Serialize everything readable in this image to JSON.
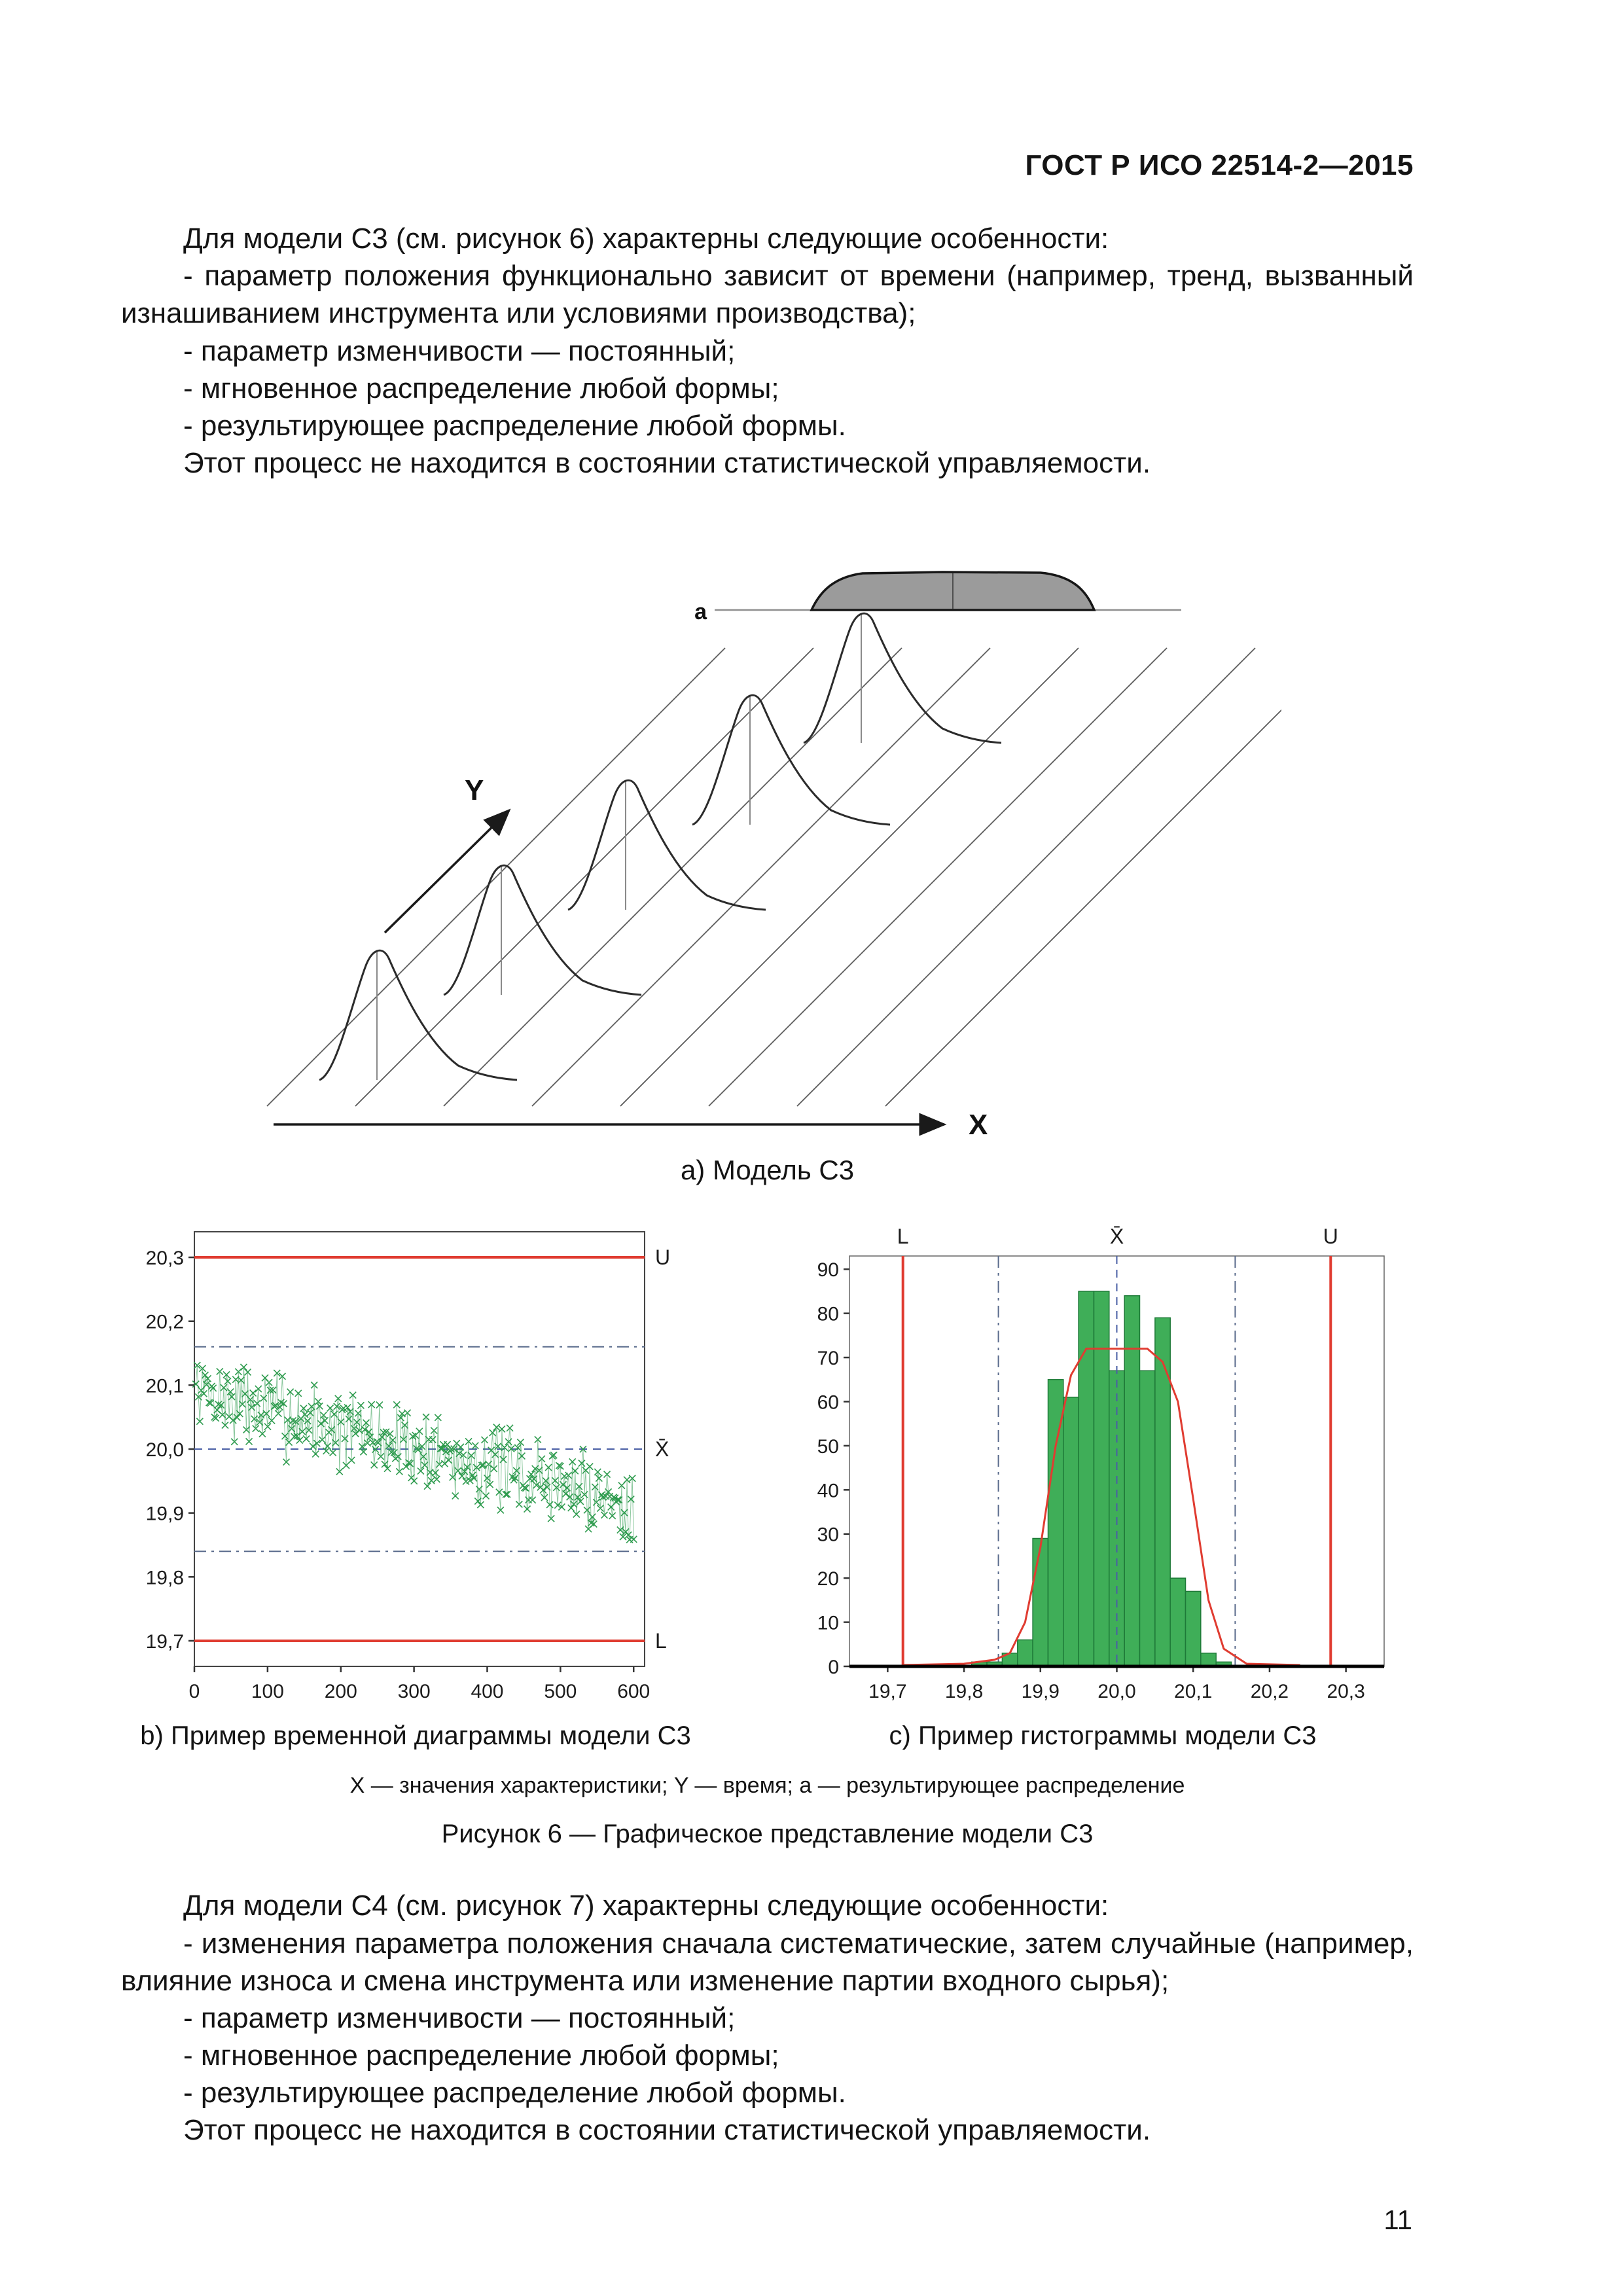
{
  "header": {
    "doc_number": "ГОСТ Р ИСО 22514-2—2015"
  },
  "page": {
    "number": "11"
  },
  "sections": {
    "model_c3": {
      "paragraphs": [
        "Для модели С3 (см. рисунок 6) характерны следующие особенности:",
        "- параметр положения функционально зависит от времени (например, тренд, вызванный изнашиванием инструмента или условиями производства);",
        "- параметр изменчивости — постоянный;",
        "- мгновенное распределение любой формы;",
        "- результирующее распределение любой формы.",
        "Этот процесс не находится в состоянии статистической управляемости."
      ]
    },
    "model_c4": {
      "paragraphs": [
        "Для модели С4 (см. рисунок 7) характерны следующие особенности:",
        "- изменения параметра положения сначала систематические, затем случайные (например, влияние износа и смена инструмента или изменение партии входного сырья);",
        "- параметр изменчивости — постоянный;",
        "- мгновенное распределение любой формы;",
        "- результирующее распределение любой формы.",
        "Этот процесс не находится в состоянии статистической управляемости."
      ]
    }
  },
  "figure": {
    "subfig_a_caption": "а) Модель С3",
    "subfig_b_caption": "b) Пример временной диаграммы модели С3",
    "subfig_c_caption": "c) Пример гистограммы модели С3",
    "legend": "X — значения характеристики; Y — время; а — результирующее распределение",
    "caption": "Рисунок 6 — Графическое представление модели С3",
    "waterfall_labels": {
      "y_axis": "Y",
      "x_axis": "X",
      "result": "a"
    }
  },
  "chart_data": [
    {
      "type": "scatter",
      "subfig": "b",
      "x_range": [
        0,
        615
      ],
      "y_range": [
        19.66,
        20.34
      ],
      "x_ticks": [
        0,
        100,
        200,
        300,
        400,
        500,
        600
      ],
      "x_tick_labels": [
        "0",
        "100",
        "200",
        "300",
        "400",
        "500",
        "600"
      ],
      "y_ticks": [
        19.7,
        19.8,
        19.9,
        20.0,
        20.1,
        20.2,
        20.3
      ],
      "y_tick_labels": [
        "19,7",
        "19,8",
        "19,9",
        "20,0",
        "20,1",
        "20,2",
        "20,3"
      ],
      "upper_limit": {
        "value": 20.3,
        "label": "U"
      },
      "lower_limit": {
        "value": 19.7,
        "label": "L"
      },
      "center_line": {
        "value": 20.0,
        "label": "X̄"
      },
      "zone_lines": [
        20.16,
        19.84
      ],
      "series": {
        "n_points": 330,
        "x_start": 2,
        "x_end": 600,
        "mean_start": 20.09,
        "mean_end": 19.915,
        "noise_sd": 0.035,
        "seed": 7
      },
      "marker": "x",
      "colors": {
        "points": "#2e9b4e",
        "limits": "#e03c31",
        "center": "#4a5fa5",
        "zones": "#5a6b8c"
      }
    },
    {
      "type": "histogram",
      "subfig": "c",
      "x_range": [
        19.65,
        20.35
      ],
      "y_range": [
        0,
        93
      ],
      "x_ticks": [
        19.7,
        19.8,
        19.9,
        20.0,
        20.1,
        20.2,
        20.3
      ],
      "x_tick_labels": [
        "19,7",
        "19,8",
        "19,9",
        "20,0",
        "20,1",
        "20,2",
        "20,3"
      ],
      "y_ticks": [
        0,
        10,
        20,
        30,
        40,
        50,
        60,
        70,
        80,
        90
      ],
      "y_tick_labels": [
        "0",
        "10",
        "20",
        "30",
        "40",
        "50",
        "60",
        "70",
        "80",
        "90"
      ],
      "bin_width": 0.02,
      "bin_centers": [
        19.82,
        19.84,
        19.86,
        19.88,
        19.9,
        19.92,
        19.94,
        19.96,
        19.98,
        20.0,
        20.02,
        20.04,
        20.06,
        20.08,
        20.1,
        20.12,
        20.14
      ],
      "bin_heights": [
        1,
        1,
        3,
        6,
        29,
        65,
        61,
        85,
        85,
        67,
        84,
        67,
        79,
        20,
        17,
        3,
        1
      ],
      "fit_curve": [
        [
          19.72,
          0.3
        ],
        [
          19.8,
          0.6
        ],
        [
          19.84,
          1.5
        ],
        [
          19.86,
          3
        ],
        [
          19.88,
          10
        ],
        [
          19.9,
          27
        ],
        [
          19.92,
          50
        ],
        [
          19.94,
          66
        ],
        [
          19.96,
          72
        ],
        [
          20.04,
          72
        ],
        [
          20.06,
          69
        ],
        [
          20.08,
          60
        ],
        [
          20.1,
          38
        ],
        [
          20.12,
          15
        ],
        [
          20.14,
          4
        ],
        [
          20.17,
          0.6
        ],
        [
          20.24,
          0.3
        ]
      ],
      "limit_lines": [
        {
          "value": 19.72,
          "label": "L"
        },
        {
          "value": 20.28,
          "label": "U"
        }
      ],
      "center_line": {
        "value": 20.0,
        "label": "X̄"
      },
      "zone_lines": [
        19.845,
        20.155
      ],
      "colors": {
        "bars": "#3fae58",
        "bar_edge": "#1e7a38",
        "curve": "#e03c31",
        "limits": "#e03c31",
        "center": "#4a5fa5",
        "zones": "#5a6b8c"
      }
    }
  ]
}
